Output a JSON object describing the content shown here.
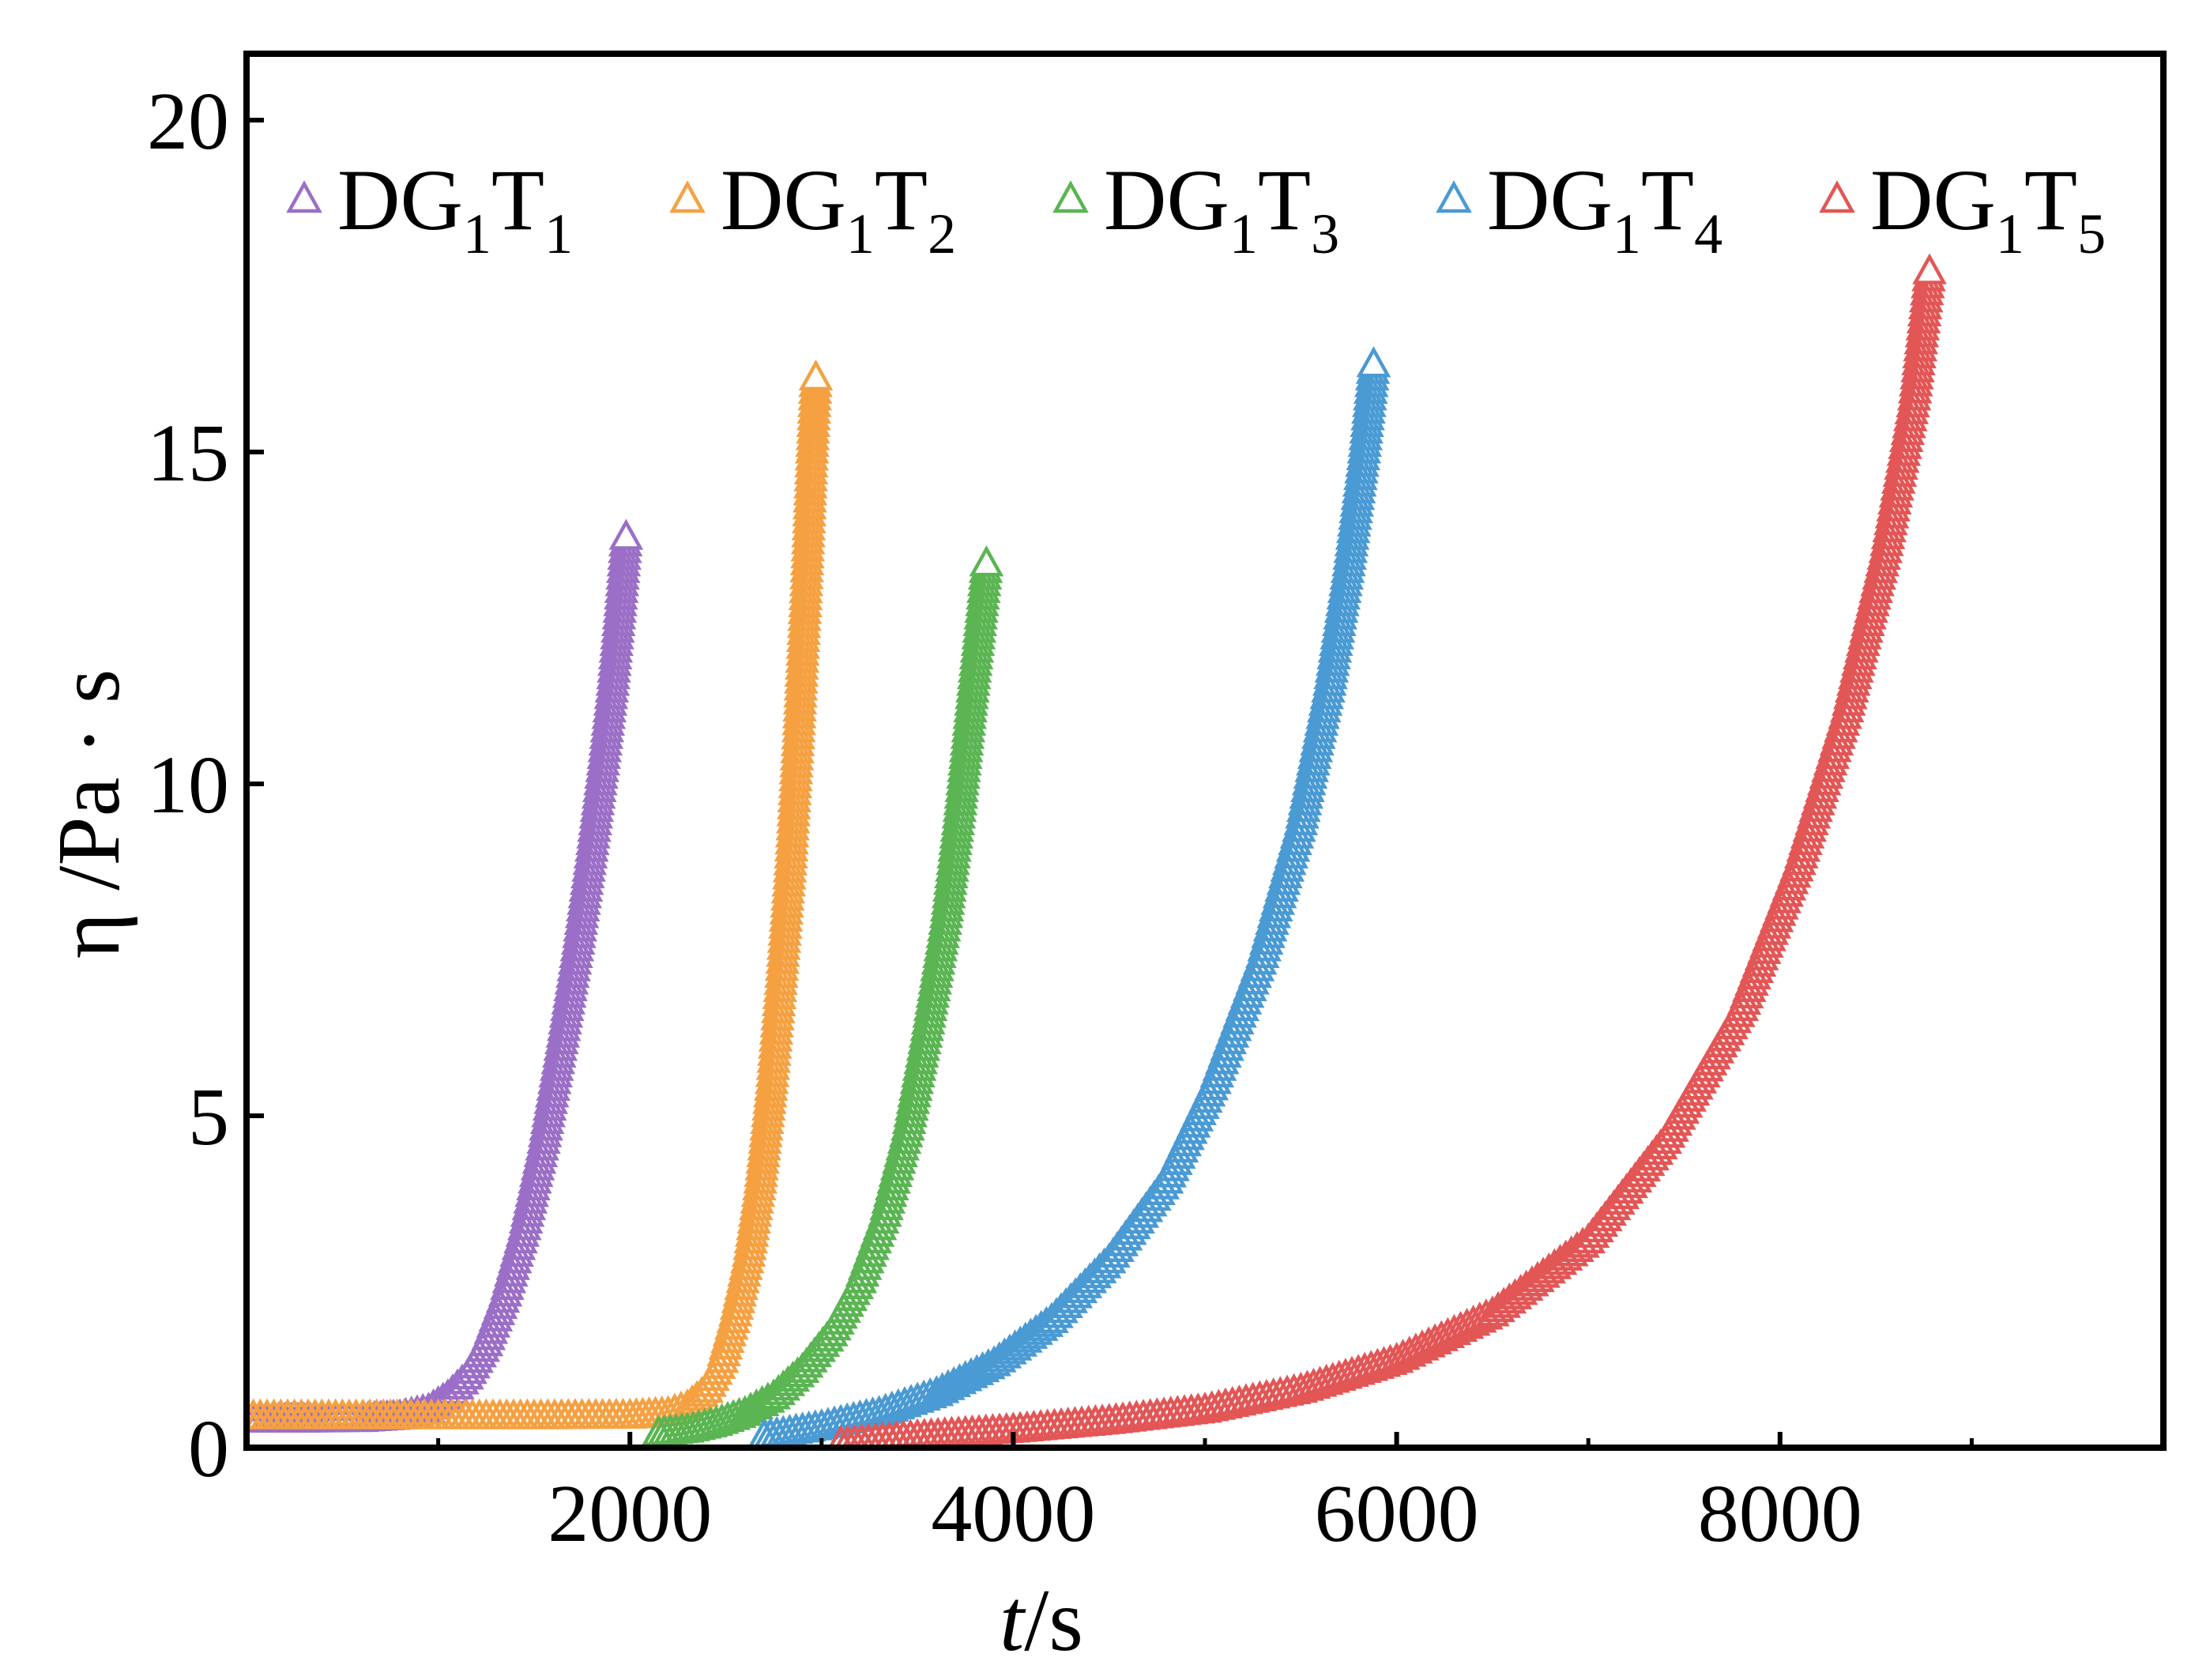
{
  "chart_data": {
    "type": "scatter",
    "title": "",
    "xlabel": {
      "var": "t",
      "unit": "/s"
    },
    "ylabel": "η /Pa · s",
    "xlim": [
      0,
      10000
    ],
    "ylim": [
      0,
      21
    ],
    "x_ticks": [
      2000,
      4000,
      6000,
      8000
    ],
    "x_minor_ticks": [
      1000,
      3000,
      5000,
      7000,
      9000
    ],
    "y_ticks": [
      0,
      5,
      10,
      15,
      20
    ],
    "marker": "open-triangle",
    "grid": false,
    "legend_position": "top",
    "series": [
      {
        "name": "DG1T1",
        "label_main": "DG",
        "label_sub1": "1",
        "label_T": "T",
        "label_sub2": "1",
        "color": "#9b6fc7",
        "points": [
          [
            0,
            0.4
          ],
          [
            300,
            0.4
          ],
          [
            600,
            0.41
          ],
          [
            800,
            0.45
          ],
          [
            950,
            0.55
          ],
          [
            1050,
            0.75
          ],
          [
            1150,
            1.05
          ],
          [
            1250,
            1.55
          ],
          [
            1350,
            2.3
          ],
          [
            1450,
            3.3
          ],
          [
            1550,
            4.6
          ],
          [
            1650,
            6.2
          ],
          [
            1730,
            7.6
          ],
          [
            1800,
            9.0
          ],
          [
            1860,
            10.3
          ],
          [
            1910,
            11.5
          ],
          [
            1950,
            12.7
          ],
          [
            1980,
            13.7
          ]
        ]
      },
      {
        "name": "DG1T2",
        "label_main": "DG",
        "label_sub1": "1",
        "label_T": "T",
        "label_sub2": "2",
        "color": "#f5a142",
        "points": [
          [
            0,
            0.45
          ],
          [
            500,
            0.45
          ],
          [
            1000,
            0.45
          ],
          [
            1500,
            0.45
          ],
          [
            2000,
            0.46
          ],
          [
            2200,
            0.5
          ],
          [
            2300,
            0.6
          ],
          [
            2400,
            0.85
          ],
          [
            2480,
            1.3
          ],
          [
            2550,
            2.0
          ],
          [
            2620,
            2.9
          ],
          [
            2680,
            4.0
          ],
          [
            2740,
            5.5
          ],
          [
            2790,
            7.1
          ],
          [
            2840,
            8.9
          ],
          [
            2880,
            10.8
          ],
          [
            2920,
            13.0
          ],
          [
            2950,
            15.0
          ],
          [
            2970,
            16.1
          ]
        ]
      },
      {
        "name": "DG1T3",
        "label_main": "DG",
        "label_sub1": "1",
        "label_T": "T",
        "label_sub2": "3",
        "color": "#5ab552",
        "points": [
          [
            2150,
            0.2
          ],
          [
            2300,
            0.25
          ],
          [
            2450,
            0.35
          ],
          [
            2600,
            0.5
          ],
          [
            2750,
            0.75
          ],
          [
            2900,
            1.15
          ],
          [
            3050,
            1.7
          ],
          [
            3200,
            2.5
          ],
          [
            3330,
            3.5
          ],
          [
            3450,
            4.8
          ],
          [
            3550,
            6.3
          ],
          [
            3650,
            8.0
          ],
          [
            3720,
            9.6
          ],
          [
            3780,
            11.2
          ],
          [
            3830,
            12.5
          ],
          [
            3860,
            13.3
          ]
        ]
      },
      {
        "name": "DG1T4",
        "label_main": "DG",
        "label_sub1": "1",
        "label_T": "T",
        "label_sub2": "4",
        "color": "#4a9ad4",
        "points": [
          [
            2700,
            0.15
          ],
          [
            3000,
            0.3
          ],
          [
            3300,
            0.5
          ],
          [
            3600,
            0.8
          ],
          [
            3900,
            1.25
          ],
          [
            4200,
            1.9
          ],
          [
            4500,
            2.8
          ],
          [
            4800,
            4.0
          ],
          [
            5050,
            5.5
          ],
          [
            5300,
            7.4
          ],
          [
            5500,
            9.4
          ],
          [
            5650,
            11.5
          ],
          [
            5750,
            13.3
          ],
          [
            5830,
            15.0
          ],
          [
            5880,
            16.3
          ]
        ]
      },
      {
        "name": "DG1T5",
        "label_main": "DG",
        "label_sub1": "1",
        "label_T": "T",
        "label_sub2": "5",
        "color": "#e35656",
        "points": [
          [
            3100,
            0.05
          ],
          [
            3500,
            0.15
          ],
          [
            4000,
            0.25
          ],
          [
            4500,
            0.38
          ],
          [
            5000,
            0.55
          ],
          [
            5500,
            0.85
          ],
          [
            6000,
            1.3
          ],
          [
            6500,
            2.0
          ],
          [
            7000,
            3.1
          ],
          [
            7400,
            4.6
          ],
          [
            7800,
            6.6
          ],
          [
            8100,
            8.8
          ],
          [
            8350,
            11.1
          ],
          [
            8550,
            13.5
          ],
          [
            8700,
            15.8
          ],
          [
            8780,
            17.7
          ]
        ]
      }
    ]
  }
}
